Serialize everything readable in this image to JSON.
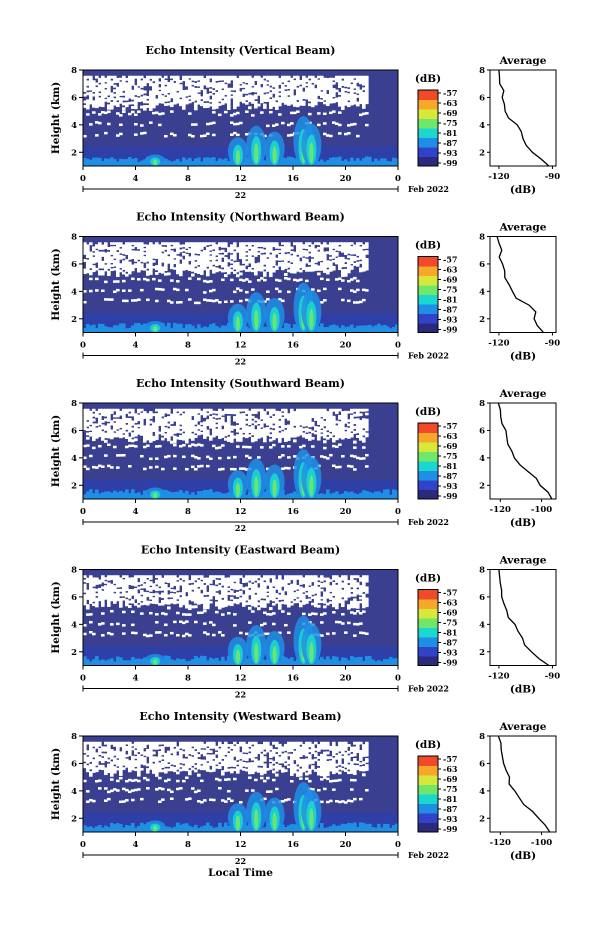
{
  "panels": [
    {
      "title": "Echo Intensity (Vertical Beam)",
      "ylabel": "Height (km)",
      "yticks": [
        "2",
        "4",
        "6",
        "8"
      ],
      "xticks": [
        "0",
        "4",
        "8",
        "12",
        "16",
        "20",
        "0"
      ],
      "day_label": "22",
      "month_year": "Feb 2022",
      "cbar_unit": "(dB)",
      "cbar_ticks": [
        "-57",
        "-63",
        "-69",
        "-75",
        "-81",
        "-87",
        "-93",
        "-99"
      ],
      "avg_title": "Average",
      "avg_xlabel": "(dB)",
      "avg_xticks": [
        "-120",
        "-90"
      ],
      "avg_yticks": [
        "2",
        "4",
        "6",
        "8"
      ]
    },
    {
      "title": "Echo Intensity (Northward Beam)",
      "ylabel": "Height (km)",
      "yticks": [
        "2",
        "4",
        "6",
        "8"
      ],
      "xticks": [
        "0",
        "4",
        "8",
        "12",
        "16",
        "20",
        "0"
      ],
      "day_label": "22",
      "month_year": "Feb 2022",
      "cbar_unit": "(dB)",
      "cbar_ticks": [
        "-57",
        "-63",
        "-69",
        "-75",
        "-81",
        "-87",
        "-93",
        "-99"
      ],
      "avg_title": "Average",
      "avg_xlabel": "(dB)",
      "avg_xticks": [
        "-120",
        "-90"
      ],
      "avg_yticks": [
        "2",
        "4",
        "6",
        "8"
      ]
    },
    {
      "title": "Echo Intensity (Southward Beam)",
      "ylabel": "Height (km)",
      "yticks": [
        "2",
        "4",
        "6",
        "8"
      ],
      "xticks": [
        "0",
        "4",
        "8",
        "12",
        "16",
        "20",
        "0"
      ],
      "day_label": "22",
      "month_year": "Feb 2022",
      "cbar_unit": "(dB)",
      "cbar_ticks": [
        "-57",
        "-63",
        "-69",
        "-75",
        "-81",
        "-87",
        "-93",
        "-99"
      ],
      "avg_title": "Average",
      "avg_xlabel": "(dB)",
      "avg_xticks": [
        "-120",
        "-100"
      ],
      "avg_yticks": [
        "2",
        "4",
        "6",
        "8"
      ]
    },
    {
      "title": "Echo Intensity (Eastward Beam)",
      "ylabel": "Height (km)",
      "yticks": [
        "2",
        "4",
        "6",
        "8"
      ],
      "xticks": [
        "0",
        "4",
        "8",
        "12",
        "16",
        "20",
        "0"
      ],
      "day_label": "22",
      "month_year": "Feb 2022",
      "cbar_unit": "(dB)",
      "cbar_ticks": [
        "-57",
        "-63",
        "-69",
        "-75",
        "-81",
        "-87",
        "-93",
        "-99"
      ],
      "avg_title": "Average",
      "avg_xlabel": "(dB)",
      "avg_xticks": [
        "-120",
        "-90"
      ],
      "avg_yticks": [
        "2",
        "4",
        "6",
        "8"
      ]
    },
    {
      "title": "Echo Intensity (Westward Beam)",
      "ylabel": "Height (km)",
      "yticks": [
        "2",
        "4",
        "6",
        "8"
      ],
      "xticks": [
        "0",
        "4",
        "8",
        "12",
        "16",
        "20",
        "0"
      ],
      "day_label": "22",
      "month_year": "Feb 2022",
      "cbar_unit": "(dB)",
      "cbar_ticks": [
        "-57",
        "-63",
        "-69",
        "-75",
        "-81",
        "-87",
        "-93",
        "-99"
      ],
      "avg_title": "Average",
      "avg_xlabel": "(dB)",
      "avg_xticks": [
        "-120",
        "-100"
      ],
      "avg_yticks": [
        "2",
        "4",
        "6",
        "8"
      ]
    }
  ],
  "bottom_xlabel": "Local Time",
  "colors": {
    "no_data": "#ffffff",
    "background_echo": "#3a3f8f",
    "colormap": [
      "#2b2a7c",
      "#3143c8",
      "#1f8fe6",
      "#1cd6d0",
      "#6fe86a",
      "#d8e83a",
      "#f7a72a",
      "#f04a2a"
    ]
  },
  "chart_data": [
    {
      "type": "heatmap",
      "title": "Echo Intensity (Vertical Beam)",
      "x_range_hours": [
        0,
        24
      ],
      "y_range_km": [
        1,
        8
      ],
      "color_range_db": [
        -99,
        -57
      ],
      "average_profile": {
        "height_km": [
          1.0,
          1.5,
          2.0,
          2.5,
          3.0,
          3.5,
          4.0,
          4.5,
          5.0,
          5.5,
          6.0,
          6.5,
          7.0,
          7.5,
          8.0
        ],
        "db": [
          -92,
          -97,
          -101,
          -104,
          -106,
          -108,
          -110,
          -114,
          -116,
          -117,
          -118,
          -118,
          -119,
          -119,
          -120
        ],
        "xlim": [
          -125,
          -88
        ]
      }
    },
    {
      "type": "heatmap",
      "title": "Echo Intensity (Northward Beam)",
      "x_range_hours": [
        0,
        24
      ],
      "y_range_km": [
        1,
        8
      ],
      "color_range_db": [
        -99,
        -57
      ],
      "average_profile": {
        "height_km": [
          1.0,
          1.5,
          2.0,
          2.5,
          3.0,
          3.5,
          4.0,
          4.5,
          5.0,
          5.5,
          6.0,
          6.5,
          7.0,
          7.5,
          8.0
        ],
        "db": [
          -95,
          -98,
          -101,
          -100,
          -103,
          -110,
          -112,
          -115,
          -116,
          -117,
          -118,
          -119,
          -119,
          -120,
          -121
        ],
        "xlim": [
          -125,
          -88
        ]
      }
    },
    {
      "type": "heatmap",
      "title": "Echo Intensity (Southward Beam)",
      "x_range_hours": [
        0,
        24
      ],
      "y_range_km": [
        1,
        8
      ],
      "color_range_db": [
        -99,
        -57
      ],
      "average_profile": {
        "height_km": [
          1.0,
          1.5,
          2.0,
          2.5,
          3.0,
          3.5,
          4.0,
          4.5,
          5.0,
          5.5,
          6.0,
          6.5,
          7.0,
          7.5,
          8.0
        ],
        "db": [
          -95,
          -97,
          -100,
          -103,
          -107,
          -110,
          -113,
          -115,
          -116,
          -117,
          -118,
          -119,
          -120,
          -120,
          -121
        ],
        "xlim": [
          -125,
          -93
        ]
      }
    },
    {
      "type": "heatmap",
      "title": "Echo Intensity (Eastward Beam)",
      "x_range_hours": [
        0,
        24
      ],
      "y_range_km": [
        1,
        8
      ],
      "color_range_db": [
        -99,
        -57
      ],
      "average_profile": {
        "height_km": [
          1.0,
          1.5,
          2.0,
          2.5,
          3.0,
          3.5,
          4.0,
          4.5,
          5.0,
          5.5,
          6.0,
          6.5,
          7.0,
          7.5,
          8.0
        ],
        "db": [
          -92,
          -98,
          -102,
          -105,
          -107,
          -109,
          -111,
          -114,
          -115,
          -117,
          -118,
          -119,
          -119,
          -120,
          -120
        ],
        "xlim": [
          -125,
          -88
        ]
      }
    },
    {
      "type": "heatmap",
      "title": "Echo Intensity (Westward Beam)",
      "x_range_hours": [
        0,
        24
      ],
      "y_range_km": [
        1,
        8
      ],
      "color_range_db": [
        -99,
        -57
      ],
      "average_profile": {
        "height_km": [
          1.0,
          1.5,
          2.0,
          2.5,
          3.0,
          3.5,
          4.0,
          4.5,
          5.0,
          5.5,
          6.0,
          6.5,
          7.0,
          7.5,
          8.0
        ],
        "db": [
          -96,
          -98,
          -102,
          -105,
          -108,
          -111,
          -113,
          -115,
          -116,
          -117,
          -118,
          -119,
          -120,
          -120,
          -121
        ],
        "xlim": [
          -125,
          -93
        ]
      }
    }
  ]
}
